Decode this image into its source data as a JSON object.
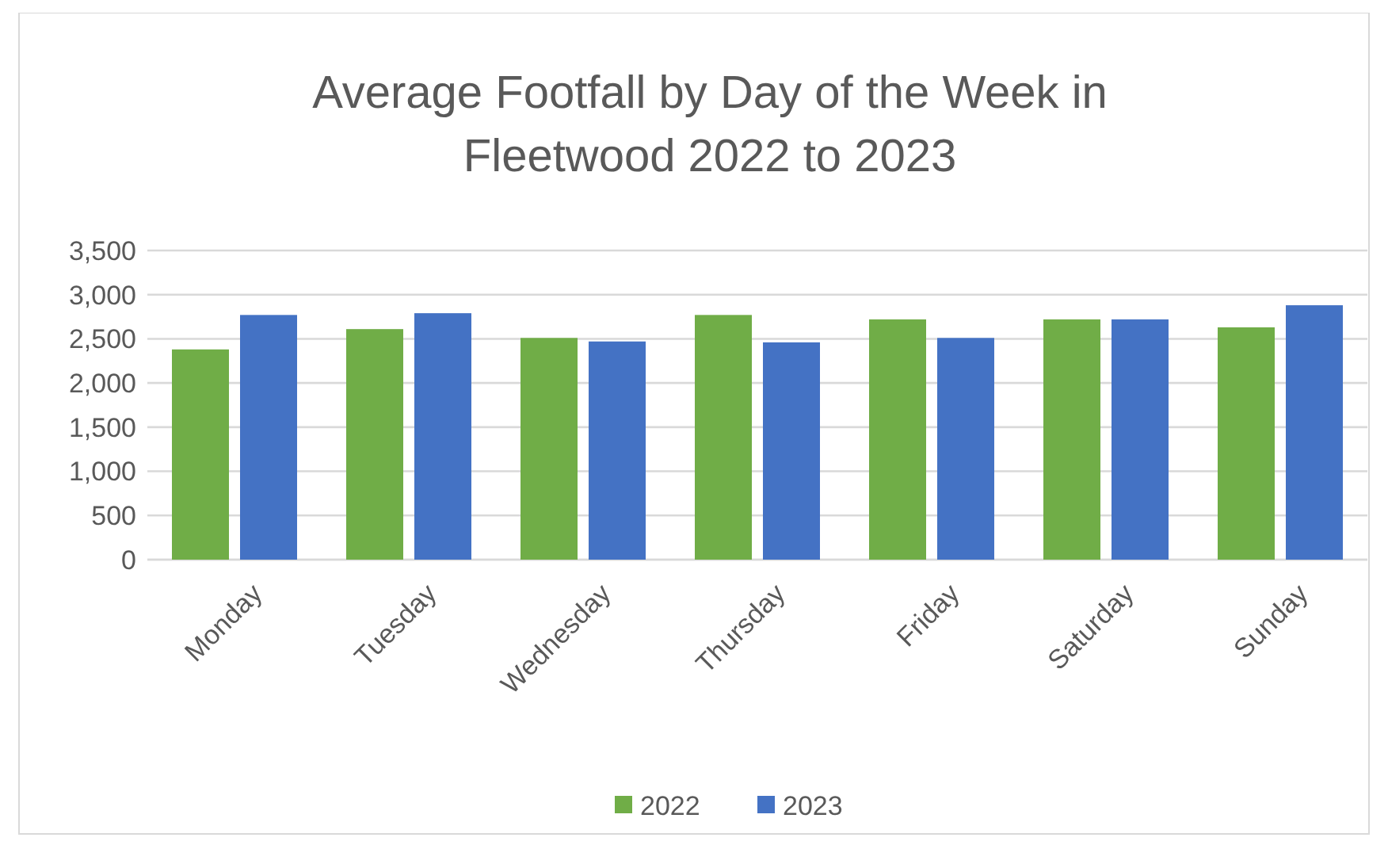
{
  "chart_data": {
    "type": "bar",
    "title": "Average Footfall by Day of the Week in Fleetwood 2022 to 2023",
    "categories": [
      "Monday",
      "Tuesday",
      "Wednesday",
      "Thursday",
      "Friday",
      "Saturday",
      "Sunday"
    ],
    "series": [
      {
        "name": "2022",
        "color": "#70ad47",
        "values": [
          2380,
          2610,
          2510,
          2770,
          2720,
          2720,
          2630
        ]
      },
      {
        "name": "2023",
        "color": "#4472c4",
        "values": [
          2770,
          2790,
          2470,
          2460,
          2510,
          2720,
          2880
        ]
      }
    ],
    "ylim": [
      0,
      3500
    ],
    "yticks": [
      {
        "value": 0,
        "label": "0"
      },
      {
        "value": 500,
        "label": "500"
      },
      {
        "value": 1000,
        "label": "1,000"
      },
      {
        "value": 1500,
        "label": "1,500"
      },
      {
        "value": 2000,
        "label": "2,000"
      },
      {
        "value": 2500,
        "label": "2,500"
      },
      {
        "value": 3000,
        "label": "3,000"
      },
      {
        "value": 3500,
        "label": "3,500"
      }
    ],
    "grid": "y",
    "legend": "bottom"
  }
}
